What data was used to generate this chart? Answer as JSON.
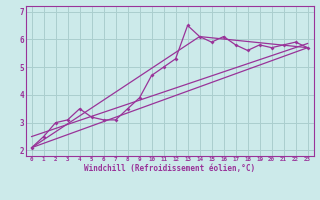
{
  "xlabel": "Windchill (Refroidissement éolien,°C)",
  "bg_color": "#cceaea",
  "grid_color": "#aacece",
  "line_color": "#993399",
  "x_ticks": [
    0,
    1,
    2,
    3,
    4,
    5,
    6,
    7,
    8,
    9,
    10,
    11,
    12,
    13,
    14,
    15,
    16,
    17,
    18,
    19,
    20,
    21,
    22,
    23
  ],
  "ylim": [
    1.8,
    7.2
  ],
  "xlim": [
    -0.5,
    23.5
  ],
  "yticks": [
    2,
    3,
    4,
    5,
    6,
    7
  ],
  "series1_x": [
    0,
    1,
    2,
    3,
    4,
    5,
    6,
    7,
    8,
    9,
    10,
    11,
    12,
    13,
    14,
    15,
    16,
    17,
    18,
    19,
    20,
    21,
    22,
    23
  ],
  "series1_y": [
    2.1,
    2.5,
    3.0,
    3.1,
    3.5,
    3.2,
    3.1,
    3.1,
    3.5,
    3.9,
    4.7,
    5.0,
    5.3,
    6.5,
    6.1,
    5.9,
    6.1,
    5.8,
    5.6,
    5.8,
    5.7,
    5.8,
    5.9,
    5.7
  ],
  "series2_x": [
    0,
    23
  ],
  "series2_y": [
    2.1,
    5.7
  ],
  "series3_x": [
    0,
    14,
    23
  ],
  "series3_y": [
    2.1,
    6.1,
    5.7
  ],
  "series4_x": [
    0,
    23
  ],
  "series4_y": [
    2.5,
    5.85
  ]
}
